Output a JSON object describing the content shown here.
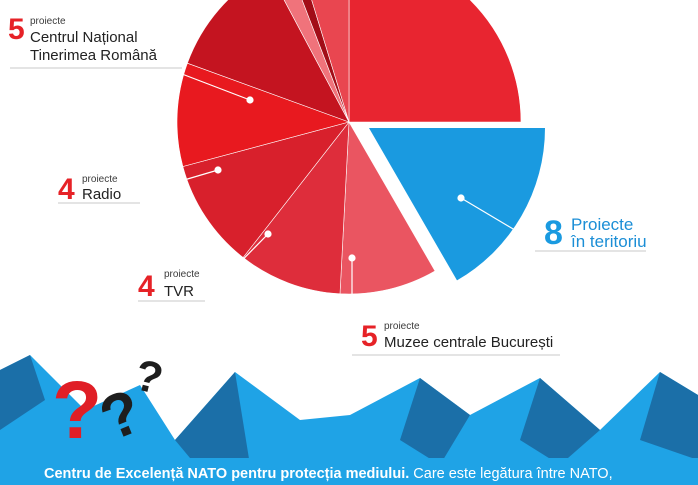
{
  "colors": {
    "red": "#e62227",
    "blue": "#1a9ae0",
    "mountain_light": "#1fa3e6",
    "mountain_dark": "#1b6fa8",
    "question_red": "#e01e26",
    "question_dark": "#1e1e1e"
  },
  "chart_data": {
    "type": "pie",
    "slices": [
      {
        "value": 8,
        "label": "Proiecte în teritoriu",
        "color": "#1a9ae0",
        "exploded": true
      },
      {
        "value": 5,
        "label": "Muzee centrale București",
        "color": "#ea5561"
      },
      {
        "value": 4,
        "label": "TVR",
        "color": "#de2d3b"
      },
      {
        "value": 4,
        "label": "Radio",
        "color": "#d8202c"
      },
      {
        "value": 5,
        "label": "Centrul Național Tinerimea Română",
        "color": "#e8191f"
      },
      {
        "value": null,
        "label": "",
        "color": "#c41420"
      },
      {
        "value": null,
        "label": "",
        "color": "#f0737b"
      },
      {
        "value": null,
        "label": "",
        "color": "#a20d17"
      },
      {
        "value": null,
        "label": "",
        "color": "#e94650"
      },
      {
        "value": null,
        "label": "",
        "color": "#e82530"
      }
    ]
  },
  "labels": {
    "cntr": {
      "number": "5",
      "prefix": "proiecte",
      "line1": "Centrul Național",
      "line2": "Tinerimea Română"
    },
    "radio": {
      "number": "4",
      "prefix": "proiecte",
      "name": "Radio"
    },
    "tvr": {
      "number": "4",
      "prefix": "proiecte",
      "name": "TVR"
    },
    "muzee": {
      "number": "5",
      "prefix": "proiecte",
      "name": "Muzee centrale București"
    },
    "teritoriu": {
      "number": "8",
      "line1": "Proiecte",
      "line2": "în teritoriu"
    }
  },
  "footer": {
    "bold": "Centru de Excelență NATO pentru protecția mediului.",
    "rest": " Care este legătura între NATO,"
  },
  "decor": {
    "question_mark": "?"
  }
}
